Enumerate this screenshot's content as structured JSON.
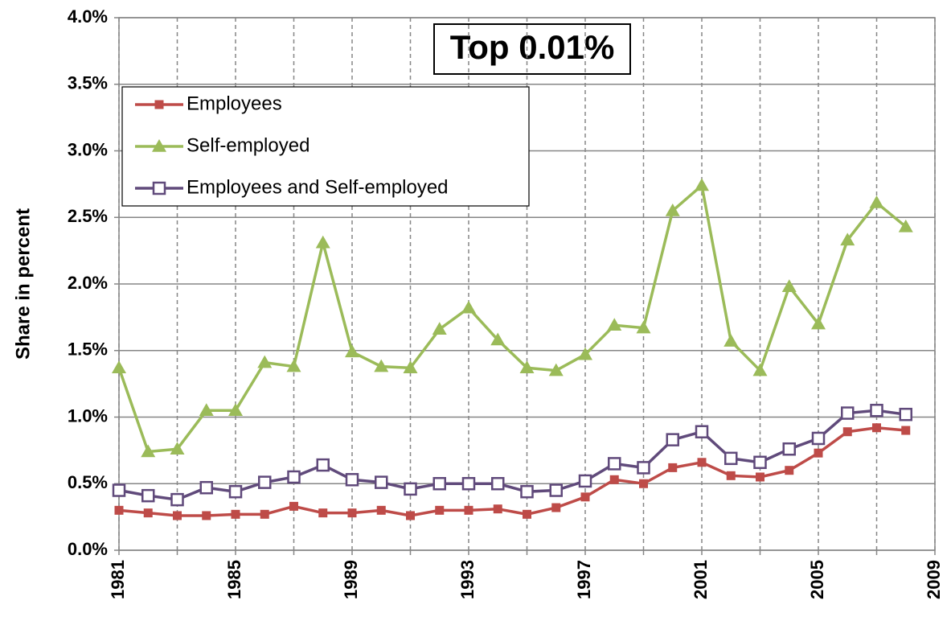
{
  "chart_data": {
    "type": "line",
    "title": "Top 0.01%",
    "y_label": "Share in percent",
    "x": [
      1981,
      1982,
      1983,
      1984,
      1985,
      1986,
      1987,
      1988,
      1989,
      1990,
      1991,
      1992,
      1993,
      1994,
      1995,
      1996,
      1997,
      1998,
      1999,
      2000,
      2001,
      2002,
      2003,
      2004,
      2005,
      2006,
      2007,
      2008
    ],
    "series": [
      {
        "name": "Employees",
        "color": "#be4b48",
        "marker": "square",
        "values": [
          0.3,
          0.28,
          0.26,
          0.26,
          0.27,
          0.27,
          0.33,
          0.28,
          0.28,
          0.3,
          0.26,
          0.3,
          0.3,
          0.31,
          0.27,
          0.32,
          0.4,
          0.53,
          0.5,
          0.62,
          0.66,
          0.56,
          0.55,
          0.6,
          0.73,
          0.89,
          0.92,
          0.9
        ]
      },
      {
        "name": "Self-employed",
        "color": "#9bbb59",
        "marker": "triangle",
        "values": [
          1.37,
          0.74,
          0.76,
          1.05,
          1.05,
          1.41,
          1.38,
          2.31,
          1.49,
          1.38,
          1.37,
          1.66,
          1.82,
          1.58,
          1.37,
          1.35,
          1.47,
          1.69,
          1.67,
          2.55,
          2.74,
          1.57,
          1.35,
          1.98,
          1.7,
          2.33,
          2.61,
          2.43
        ]
      },
      {
        "name": "Employees and Self-employed",
        "color": "#604a7b",
        "marker": "open-square",
        "values": [
          0.45,
          0.41,
          0.38,
          0.47,
          0.44,
          0.51,
          0.55,
          0.64,
          0.53,
          0.51,
          0.46,
          0.5,
          0.5,
          0.5,
          0.44,
          0.45,
          0.52,
          0.65,
          0.62,
          0.83,
          0.89,
          0.69,
          0.66,
          0.76,
          0.84,
          1.03,
          1.05,
          1.02
        ]
      }
    ],
    "xlim": [
      1981,
      2009
    ],
    "xticks": [
      1981,
      1985,
      1989,
      1993,
      1997,
      2001,
      2005,
      2009
    ],
    "x_minor_ticks": [
      1983,
      1987,
      1991,
      1995,
      1999,
      2003,
      2007
    ],
    "ylim": [
      0,
      4
    ],
    "yticks": [
      {
        "value": 0,
        "label": "0.0%"
      },
      {
        "value": 0.5,
        "label": "0.5%"
      },
      {
        "value": 1,
        "label": "1.0%"
      },
      {
        "value": 1.5,
        "label": "1.5%"
      },
      {
        "value": 2,
        "label": "2.0%"
      },
      {
        "value": 2.5,
        "label": "2.5%"
      },
      {
        "value": 3,
        "label": "3.0%"
      },
      {
        "value": 3.5,
        "label": "3.5%"
      },
      {
        "value": 4,
        "label": "4.0%"
      }
    ],
    "grid": true,
    "legend": "upper left"
  }
}
